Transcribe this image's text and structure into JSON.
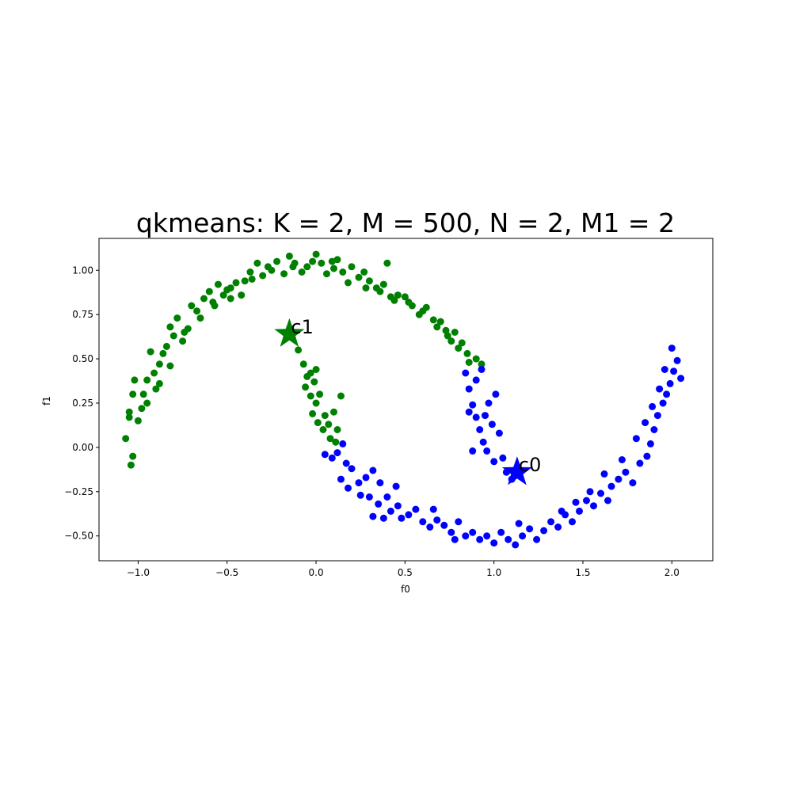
{
  "chart_data": {
    "type": "scatter",
    "title": "qkmeans: K = 2, M = 500, N = 2, M1 = 2",
    "xlabel": "f0",
    "ylabel": "f1",
    "xlim": [
      -1.22,
      2.23
    ],
    "ylim": [
      -0.64,
      1.18
    ],
    "x_ticks": [
      -1.0,
      -0.5,
      0.0,
      0.5,
      1.0,
      1.5,
      2.0
    ],
    "x_tick_labels": [
      "−1.0",
      "−0.5",
      "0.0",
      "0.5",
      "1.0",
      "1.5",
      "2.0"
    ],
    "y_ticks": [
      -0.5,
      -0.25,
      0.0,
      0.25,
      0.5,
      0.75,
      1.0
    ],
    "y_tick_labels": [
      "−0.50",
      "−0.25",
      "0.00",
      "0.25",
      "0.50",
      "0.75",
      "1.00"
    ],
    "grid": false,
    "series": [
      {
        "color": "#008000",
        "points": [
          [
            -1.07,
            0.05
          ],
          [
            -1.04,
            -0.1
          ],
          [
            -1.03,
            -0.05
          ],
          [
            -1.05,
            0.17
          ],
          [
            -1.03,
            0.3
          ],
          [
            -1.02,
            0.38
          ],
          [
            -1.0,
            0.15
          ],
          [
            -0.98,
            0.22
          ],
          [
            -0.97,
            0.3
          ],
          [
            -0.95,
            0.38
          ],
          [
            -0.93,
            0.54
          ],
          [
            -0.91,
            0.42
          ],
          [
            -0.9,
            0.33
          ],
          [
            -0.88,
            0.47
          ],
          [
            -0.86,
            0.53
          ],
          [
            -0.84,
            0.57
          ],
          [
            -0.82,
            0.68
          ],
          [
            -0.8,
            0.63
          ],
          [
            -0.78,
            0.73
          ],
          [
            -0.75,
            0.6
          ],
          [
            -0.72,
            0.67
          ],
          [
            -0.7,
            0.8
          ],
          [
            -0.67,
            0.77
          ],
          [
            -0.63,
            0.84
          ],
          [
            -0.6,
            0.88
          ],
          [
            -0.57,
            0.8
          ],
          [
            -0.55,
            0.92
          ],
          [
            -0.52,
            0.86
          ],
          [
            -0.5,
            0.89
          ],
          [
            -0.48,
            0.84
          ],
          [
            -0.45,
            0.93
          ],
          [
            -0.42,
            0.86
          ],
          [
            -0.4,
            0.94
          ],
          [
            -0.37,
            0.99
          ],
          [
            -0.33,
            1.04
          ],
          [
            -0.3,
            0.97
          ],
          [
            -0.27,
            1.02
          ],
          [
            -0.22,
            1.05
          ],
          [
            -0.18,
            0.98
          ],
          [
            -0.15,
            1.08
          ],
          [
            -0.12,
            1.04
          ],
          [
            -0.08,
            0.99
          ],
          [
            -0.05,
            1.02
          ],
          [
            0.0,
            1.09
          ],
          [
            0.03,
            1.04
          ],
          [
            0.06,
            0.98
          ],
          [
            0.09,
            1.05
          ],
          [
            0.12,
            1.06
          ],
          [
            0.15,
            0.99
          ],
          [
            0.2,
            1.02
          ],
          [
            0.24,
            0.96
          ],
          [
            0.27,
            0.99
          ],
          [
            0.3,
            0.94
          ],
          [
            0.34,
            0.9
          ],
          [
            0.38,
            0.92
          ],
          [
            0.4,
            1.04
          ],
          [
            0.42,
            0.85
          ],
          [
            0.46,
            0.86
          ],
          [
            0.5,
            0.85
          ],
          [
            0.54,
            0.8
          ],
          [
            0.58,
            0.75
          ],
          [
            0.62,
            0.79
          ],
          [
            0.66,
            0.72
          ],
          [
            0.7,
            0.71
          ],
          [
            0.73,
            0.66
          ],
          [
            0.76,
            0.6
          ],
          [
            0.78,
            0.65
          ],
          [
            0.82,
            0.59
          ],
          [
            0.85,
            0.53
          ],
          [
            0.9,
            0.5
          ],
          [
            0.93,
            0.47
          ],
          [
            -1.05,
            0.2
          ],
          [
            -0.95,
            0.25
          ],
          [
            -0.88,
            0.36
          ],
          [
            -0.82,
            0.46
          ],
          [
            -0.74,
            0.65
          ],
          [
            -0.65,
            0.73
          ],
          [
            -0.58,
            0.82
          ],
          [
            -0.48,
            0.9
          ],
          [
            -0.36,
            0.95
          ],
          [
            -0.25,
            1.0
          ],
          [
            -0.13,
            1.02
          ],
          [
            -0.02,
            1.05
          ],
          [
            0.1,
            1.01
          ],
          [
            0.18,
            0.93
          ],
          [
            0.28,
            0.9
          ],
          [
            0.36,
            0.88
          ],
          [
            0.44,
            0.83
          ],
          [
            0.52,
            0.82
          ],
          [
            0.6,
            0.77
          ],
          [
            0.68,
            0.68
          ],
          [
            0.74,
            0.63
          ],
          [
            0.8,
            0.56
          ],
          [
            0.86,
            0.48
          ],
          [
            -0.1,
            0.55
          ],
          [
            -0.07,
            0.47
          ],
          [
            -0.05,
            0.4
          ],
          [
            -0.03,
            0.42
          ],
          [
            0.0,
            0.44
          ],
          [
            -0.06,
            0.34
          ],
          [
            -0.03,
            0.29
          ],
          [
            0.0,
            0.25
          ],
          [
            -0.02,
            0.19
          ],
          [
            0.02,
            0.3
          ],
          [
            0.01,
            0.14
          ],
          [
            0.04,
            0.1
          ],
          [
            0.07,
            0.13
          ],
          [
            0.1,
            0.2
          ],
          [
            0.12,
            0.1
          ],
          [
            0.14,
            0.29
          ],
          [
            0.08,
            0.05
          ],
          [
            0.11,
            0.03
          ],
          [
            -0.01,
            0.37
          ],
          [
            0.05,
            0.18
          ]
        ]
      },
      {
        "color": "#0000ff",
        "points": [
          [
            0.05,
            -0.04
          ],
          [
            0.09,
            -0.06
          ],
          [
            0.12,
            -0.03
          ],
          [
            0.15,
            0.02
          ],
          [
            0.17,
            -0.09
          ],
          [
            0.2,
            -0.12
          ],
          [
            0.14,
            -0.18
          ],
          [
            0.18,
            -0.23
          ],
          [
            0.24,
            -0.2
          ],
          [
            0.28,
            -0.17
          ],
          [
            0.32,
            -0.13
          ],
          [
            0.36,
            -0.2
          ],
          [
            0.3,
            -0.28
          ],
          [
            0.35,
            -0.32
          ],
          [
            0.4,
            -0.28
          ],
          [
            0.42,
            -0.36
          ],
          [
            0.46,
            -0.33
          ],
          [
            0.32,
            -0.39
          ],
          [
            0.38,
            -0.4
          ],
          [
            0.48,
            -0.4
          ],
          [
            0.52,
            -0.38
          ],
          [
            0.56,
            -0.35
          ],
          [
            0.6,
            -0.42
          ],
          [
            0.64,
            -0.45
          ],
          [
            0.68,
            -0.41
          ],
          [
            0.72,
            -0.44
          ],
          [
            0.76,
            -0.48
          ],
          [
            0.8,
            -0.42
          ],
          [
            0.84,
            -0.5
          ],
          [
            0.88,
            -0.48
          ],
          [
            0.92,
            -0.52
          ],
          [
            0.96,
            -0.5
          ],
          [
            1.0,
            -0.54
          ],
          [
            1.04,
            -0.48
          ],
          [
            1.08,
            -0.52
          ],
          [
            1.12,
            -0.55
          ],
          [
            1.16,
            -0.5
          ],
          [
            1.2,
            -0.46
          ],
          [
            1.24,
            -0.52
          ],
          [
            1.28,
            -0.47
          ],
          [
            1.32,
            -0.42
          ],
          [
            1.36,
            -0.45
          ],
          [
            1.4,
            -0.38
          ],
          [
            1.44,
            -0.42
          ],
          [
            1.48,
            -0.36
          ],
          [
            1.52,
            -0.3
          ],
          [
            1.56,
            -0.33
          ],
          [
            1.6,
            -0.26
          ],
          [
            1.64,
            -0.3
          ],
          [
            1.66,
            -0.22
          ],
          [
            1.7,
            -0.18
          ],
          [
            1.74,
            -0.14
          ],
          [
            1.78,
            -0.2
          ],
          [
            1.82,
            -0.09
          ],
          [
            1.86,
            -0.05
          ],
          [
            1.88,
            0.02
          ],
          [
            1.9,
            0.1
          ],
          [
            1.92,
            0.18
          ],
          [
            1.95,
            0.25
          ],
          [
            1.97,
            0.3
          ],
          [
            1.99,
            0.36
          ],
          [
            2.01,
            0.43
          ],
          [
            2.03,
            0.49
          ],
          [
            2.05,
            0.39
          ],
          [
            2.0,
            0.56
          ],
          [
            1.96,
            0.44
          ],
          [
            1.93,
            0.33
          ],
          [
            1.89,
            0.23
          ],
          [
            1.85,
            0.14
          ],
          [
            1.8,
            0.05
          ],
          [
            1.72,
            -0.07
          ],
          [
            1.62,
            -0.15
          ],
          [
            1.54,
            -0.25
          ],
          [
            1.46,
            -0.31
          ],
          [
            1.38,
            -0.36
          ],
          [
            0.84,
            0.42
          ],
          [
            0.86,
            0.33
          ],
          [
            0.88,
            0.24
          ],
          [
            0.9,
            0.17
          ],
          [
            0.92,
            0.1
          ],
          [
            0.94,
            0.03
          ],
          [
            0.96,
            -0.02
          ],
          [
            0.99,
            0.13
          ],
          [
            1.03,
            0.08
          ],
          [
            1.05,
            -0.06
          ],
          [
            1.07,
            -0.14
          ],
          [
            1.1,
            -0.18
          ],
          [
            0.97,
            0.25
          ],
          [
            1.01,
            0.3
          ],
          [
            0.86,
            0.2
          ],
          [
            0.9,
            0.38
          ],
          [
            0.93,
            0.44
          ],
          [
            0.95,
            0.18
          ],
          [
            1.0,
            -0.08
          ],
          [
            0.88,
            -0.02
          ],
          [
            0.25,
            -0.27
          ],
          [
            0.45,
            -0.22
          ],
          [
            0.66,
            -0.35
          ],
          [
            0.78,
            -0.52
          ],
          [
            1.14,
            -0.43
          ]
        ]
      }
    ],
    "centroids": [
      {
        "label": "c1",
        "x": -0.15,
        "y": 0.64,
        "color": "#008000"
      },
      {
        "label": "c0",
        "x": 1.13,
        "y": -0.14,
        "color": "#0000ff"
      }
    ]
  }
}
